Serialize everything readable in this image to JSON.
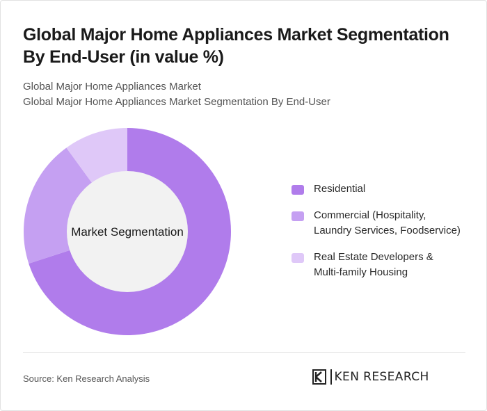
{
  "title": "Global Major Home Appliances Market Segmentation By End-User (in value %)",
  "subtitle_lines": [
    "Global Major Home Appliances Market",
    "Global Major Home Appliances Market Segmentation By End-User"
  ],
  "chart_data": {
    "type": "pie",
    "variant": "donut",
    "center_label": "Market Segmentation",
    "categories": [
      "Residential",
      "Commercial (Hospitality, Laundry Services, Foodservice)",
      "Real Estate Developers & Multi-family Housing"
    ],
    "values": [
      70,
      20,
      10
    ],
    "colors": [
      "#b07ceb",
      "#c5a0f2",
      "#dfc8f8"
    ],
    "legend_position": "right"
  },
  "legend": {
    "items": [
      {
        "lines": [
          "Residential"
        ]
      },
      {
        "lines": [
          "Commercial (Hospitality,",
          "Laundry Services, Foodservice)"
        ]
      },
      {
        "lines": [
          "Real Estate Developers &",
          "Multi-family Housing"
        ]
      }
    ]
  },
  "footer": {
    "source": "Source: Ken Research Analysis",
    "logo_text": "KEN RESEARCH"
  },
  "colors": {
    "center_fill": "#f2f2f2",
    "text": "#1a1a1a"
  }
}
